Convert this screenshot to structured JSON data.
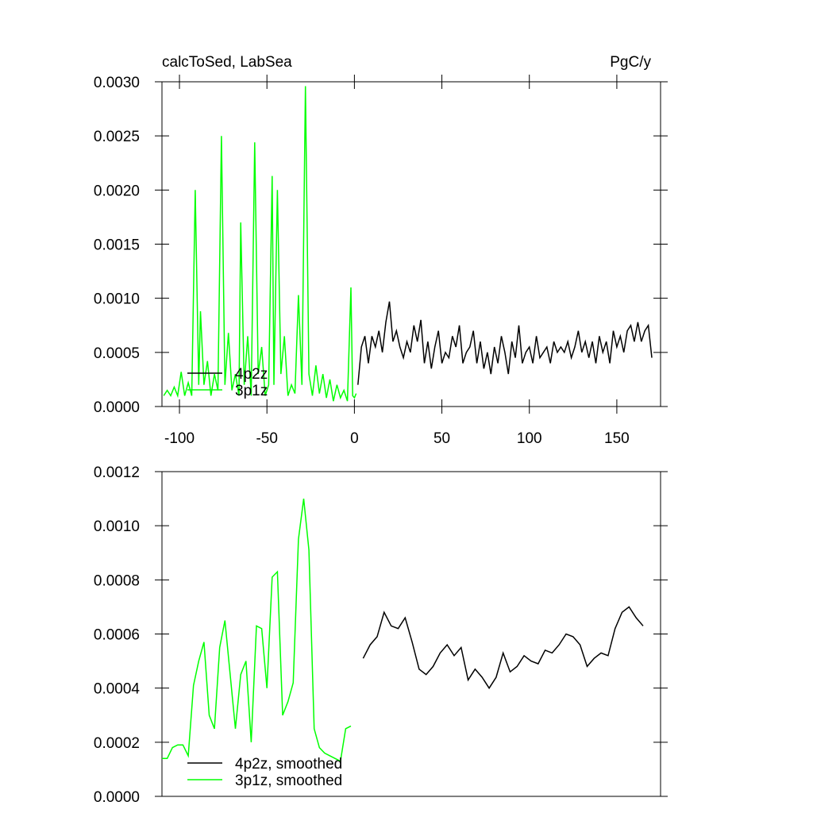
{
  "chart_data": [
    {
      "type": "line",
      "title": "calcToSed, LabSea",
      "units": "PgC/y",
      "xlim": [
        -110,
        175
      ],
      "xticks": [
        -100,
        -50,
        0,
        50,
        100,
        150
      ],
      "ylim": [
        0,
        0.003
      ],
      "yticks": [
        {
          "value": 0,
          "label": "0.0000"
        },
        {
          "value": 0.0005,
          "label": "0.0005"
        },
        {
          "value": 0.001,
          "label": "0.0010"
        },
        {
          "value": 0.0015,
          "label": "0.0015"
        },
        {
          "value": 0.002,
          "label": "0.0020"
        },
        {
          "value": 0.0025,
          "label": "0.0025"
        },
        {
          "value": 0.003,
          "label": "0.0030"
        }
      ],
      "legend": "lower-left",
      "series": [
        {
          "name": "4p2z",
          "color": "#000000",
          "x": [
            2,
            4,
            6,
            8,
            10,
            12,
            14,
            16,
            18,
            20,
            22,
            24,
            26,
            28,
            30,
            32,
            34,
            36,
            38,
            40,
            42,
            44,
            46,
            48,
            50,
            52,
            54,
            56,
            58,
            60,
            62,
            64,
            66,
            68,
            70,
            72,
            74,
            76,
            78,
            80,
            82,
            84,
            86,
            88,
            90,
            92,
            94,
            96,
            98,
            100,
            102,
            104,
            106,
            108,
            110,
            112,
            114,
            116,
            118,
            120,
            122,
            124,
            126,
            128,
            130,
            132,
            134,
            136,
            138,
            140,
            142,
            144,
            146,
            148,
            150,
            152,
            154,
            156,
            158,
            160,
            162,
            164,
            166,
            168,
            170
          ],
          "values": [
            0.0002,
            0.00055,
            0.00065,
            0.0004,
            0.00065,
            0.00055,
            0.0007,
            0.0005,
            0.00078,
            0.00097,
            0.0006,
            0.0007,
            0.00055,
            0.00045,
            0.0006,
            0.0005,
            0.00075,
            0.0006,
            0.0008,
            0.0004,
            0.0006,
            0.00035,
            0.00055,
            0.0007,
            0.0004,
            0.0005,
            0.00045,
            0.00065,
            0.00055,
            0.00075,
            0.0004,
            0.0005,
            0.00055,
            0.0007,
            0.0004,
            0.0006,
            0.00035,
            0.0005,
            0.0003,
            0.00055,
            0.0004,
            0.00065,
            0.0005,
            0.0003,
            0.0006,
            0.00045,
            0.00075,
            0.0004,
            0.0005,
            0.00055,
            0.0004,
            0.00065,
            0.00045,
            0.0005,
            0.00055,
            0.0004,
            0.0006,
            0.0005,
            0.00055,
            0.0005,
            0.0006,
            0.00045,
            0.00055,
            0.0007,
            0.0005,
            0.0006,
            0.00045,
            0.0006,
            0.0004,
            0.00065,
            0.0005,
            0.0006,
            0.0004,
            0.0007,
            0.00055,
            0.00065,
            0.0005,
            0.0007,
            0.00075,
            0.0006,
            0.00078,
            0.0006,
            0.0007,
            0.00075,
            0.00045
          ]
        },
        {
          "name": "3p1z",
          "color": "#00ff00",
          "x": [
            -109,
            -107,
            -105,
            -103,
            -101,
            -99,
            -97,
            -95,
            -93,
            -91,
            -89,
            -88,
            -86,
            -84,
            -82,
            -80,
            -78,
            -76,
            -74,
            -72,
            -70,
            -68,
            -66,
            -65,
            -63,
            -61,
            -59,
            -57,
            -55,
            -53,
            -51,
            -49,
            -47,
            -46,
            -44,
            -42,
            -40,
            -38,
            -36,
            -34,
            -32,
            -30,
            -28,
            -26,
            -24,
            -22,
            -20,
            -18,
            -16,
            -14,
            -12,
            -10,
            -8,
            -6,
            -4,
            -2,
            -1,
            0,
            1
          ],
          "values": [
            0.0001,
            0.00015,
            0.0001,
            0.00018,
            0.0001,
            0.00032,
            0.0001,
            0.00022,
            0.0001,
            0.002,
            0.0002,
            0.00088,
            0.0002,
            0.00042,
            0.0001,
            0.0003,
            0.00015,
            0.0025,
            0.0002,
            0.00068,
            0.00015,
            0.0003,
            0.0001,
            0.0017,
            0.0002,
            0.00065,
            0.0001,
            0.00244,
            0.0003,
            0.00055,
            0.0001,
            0.0002,
            0.00213,
            0.0002,
            0.002,
            0.0003,
            0.00065,
            0.0001,
            0.0002,
            0.00012,
            0.00103,
            0.0002,
            0.00296,
            0.0003,
            0.0001,
            0.00038,
            0.00012,
            0.0003,
            8e-05,
            0.00025,
            5e-05,
            0.0002,
            8e-05,
            0.00015,
            5e-05,
            0.0011,
            0.0001,
            8e-05,
            0.00012
          ]
        }
      ]
    },
    {
      "type": "line",
      "xlim": [
        -110,
        175
      ],
      "ylim": [
        0,
        0.0012
      ],
      "yticks": [
        {
          "value": 0,
          "label": "0.0000"
        },
        {
          "value": 0.0002,
          "label": "0.0002"
        },
        {
          "value": 0.0004,
          "label": "0.0004"
        },
        {
          "value": 0.0006,
          "label": "0.0006"
        },
        {
          "value": 0.0008,
          "label": "0.0008"
        },
        {
          "value": 0.001,
          "label": "0.0010"
        },
        {
          "value": 0.0012,
          "label": "0.0012"
        }
      ],
      "legend": "lower-left",
      "series": [
        {
          "name": "4p2z, smoothed",
          "color": "#000000",
          "x": [
            5,
            9,
            13,
            17,
            21,
            25,
            29,
            33,
            37,
            41,
            45,
            49,
            53,
            57,
            61,
            65,
            69,
            73,
            77,
            81,
            85,
            89,
            93,
            97,
            101,
            105,
            109,
            113,
            117,
            121,
            125,
            129,
            133,
            137,
            141,
            145,
            149,
            153,
            157,
            161,
            165
          ],
          "values": [
            0.00051,
            0.00056,
            0.00059,
            0.00068,
            0.00063,
            0.00062,
            0.00066,
            0.00057,
            0.00047,
            0.00045,
            0.00048,
            0.00053,
            0.00056,
            0.00052,
            0.00055,
            0.00043,
            0.00047,
            0.00044,
            0.0004,
            0.00044,
            0.00053,
            0.00046,
            0.00048,
            0.00052,
            0.0005,
            0.00049,
            0.00054,
            0.00053,
            0.00056,
            0.0006,
            0.00059,
            0.00056,
            0.00048,
            0.00051,
            0.00053,
            0.00052,
            0.00062,
            0.00068,
            0.0007,
            0.00066,
            0.00063
          ]
        },
        {
          "name": "3p1z, smoothed",
          "color": "#00ff00",
          "x": [
            -110,
            -107,
            -104,
            -101,
            -98,
            -95,
            -92,
            -89,
            -86,
            -83,
            -80,
            -77,
            -74,
            -71,
            -68,
            -65,
            -62,
            -59,
            -56,
            -53,
            -50,
            -47,
            -44,
            -41,
            -38,
            -35,
            -32,
            -29,
            -26,
            -23,
            -20,
            -17,
            -14,
            -11,
            -8,
            -5,
            -2
          ],
          "values": [
            0.00014,
            0.00014,
            0.00018,
            0.00019,
            0.00019,
            0.00015,
            0.00041,
            0.0005,
            0.00057,
            0.0003,
            0.00025,
            0.00055,
            0.00065,
            0.00045,
            0.00025,
            0.00045,
            0.0005,
            0.0002,
            0.00063,
            0.00062,
            0.0004,
            0.00081,
            0.00083,
            0.0003,
            0.00035,
            0.00042,
            0.00095,
            0.0011,
            0.00091,
            0.00025,
            0.00018,
            0.00016,
            0.00015,
            0.00014,
            0.00013,
            0.00025,
            0.00026
          ]
        }
      ]
    }
  ]
}
